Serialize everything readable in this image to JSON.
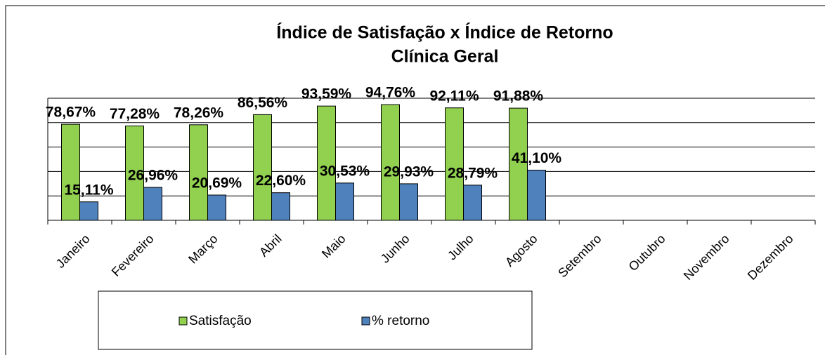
{
  "chart_data": {
    "type": "bar",
    "title": "Índice de Satisfação x Índice de Retorno",
    "subtitle": "Clínica Geral",
    "categories": [
      "Janeiro",
      "Fevereiro",
      "Março",
      "Abril",
      "Maio",
      "Junho",
      "Julho",
      "Agosto",
      "Setembro",
      "Outubro",
      "Novembro",
      "Dezembro"
    ],
    "series": [
      {
        "name": "Satisfação",
        "color": "#92d050",
        "values": [
          78.67,
          77.28,
          78.26,
          86.56,
          93.59,
          94.76,
          92.11,
          91.88,
          null,
          null,
          null,
          null
        ],
        "value_labels": [
          "78,67%",
          "77,28%",
          "78,26%",
          "86,56%",
          "93,59%",
          "94,76%",
          "92,11%",
          "91,88%",
          null,
          null,
          null,
          null
        ]
      },
      {
        "name": "% retorno",
        "color": "#4f81bd",
        "values": [
          15.11,
          26.96,
          20.69,
          22.6,
          30.53,
          29.93,
          28.79,
          41.1,
          null,
          null,
          null,
          null
        ],
        "value_labels": [
          "15,11%",
          "26,96%",
          "20,69%",
          "22,60%",
          "30,53%",
          "29,93%",
          "28,79%",
          "41,10%",
          null,
          null,
          null,
          null
        ]
      }
    ],
    "ylim": [
      0,
      100
    ],
    "yticks": [
      0,
      20,
      40,
      60,
      80,
      100
    ],
    "grid": true
  }
}
